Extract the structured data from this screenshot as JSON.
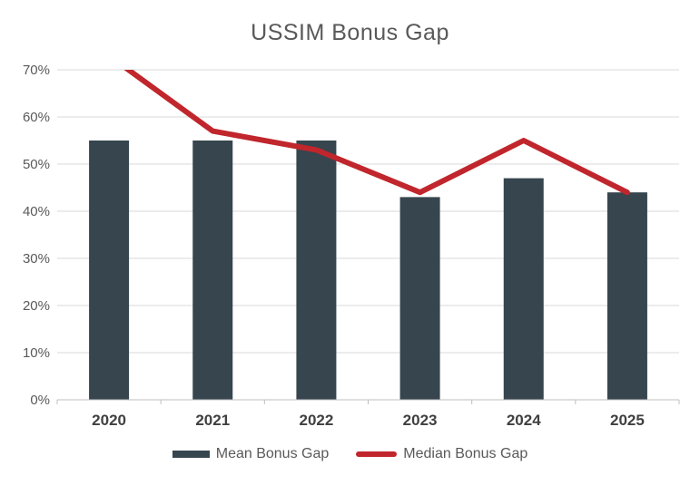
{
  "chart_data": {
    "type": "bar",
    "subtype": "combo-bar-line",
    "title": "USSIM Bonus Gap",
    "categories": [
      "2020",
      "2021",
      "2022",
      "2023",
      "2024",
      "2025"
    ],
    "series": [
      {
        "name": "Mean Bonus Gap",
        "chart_type": "bar",
        "color": "#36454E",
        "values": [
          55,
          55,
          55,
          43,
          47,
          44
        ]
      },
      {
        "name": "Median Bonus Gap",
        "chart_type": "line",
        "color": "#C0262C",
        "values": [
          73,
          57,
          53,
          44,
          55,
          44
        ]
      }
    ],
    "xlabel": "",
    "ylabel": "",
    "ylim": [
      0,
      70
    ],
    "ytick_step": 10,
    "ytick_format": "percent",
    "ytick_labels": [
      "0%",
      "10%",
      "20%",
      "30%",
      "40%",
      "50%",
      "60%",
      "70%"
    ],
    "grid": true,
    "legend_position": "bottom",
    "line_clipped_at_axis_max": true
  },
  "colors": {
    "background": "#FFFFFF",
    "title_text": "#595959",
    "ytick_text": "#595959",
    "xtick_text": "#404040",
    "legend_text": "#595959",
    "gridline": "#DADADA",
    "axis_line": "#BFBFBF",
    "bar_fill": "#36454E",
    "line_stroke": "#C0262C"
  }
}
